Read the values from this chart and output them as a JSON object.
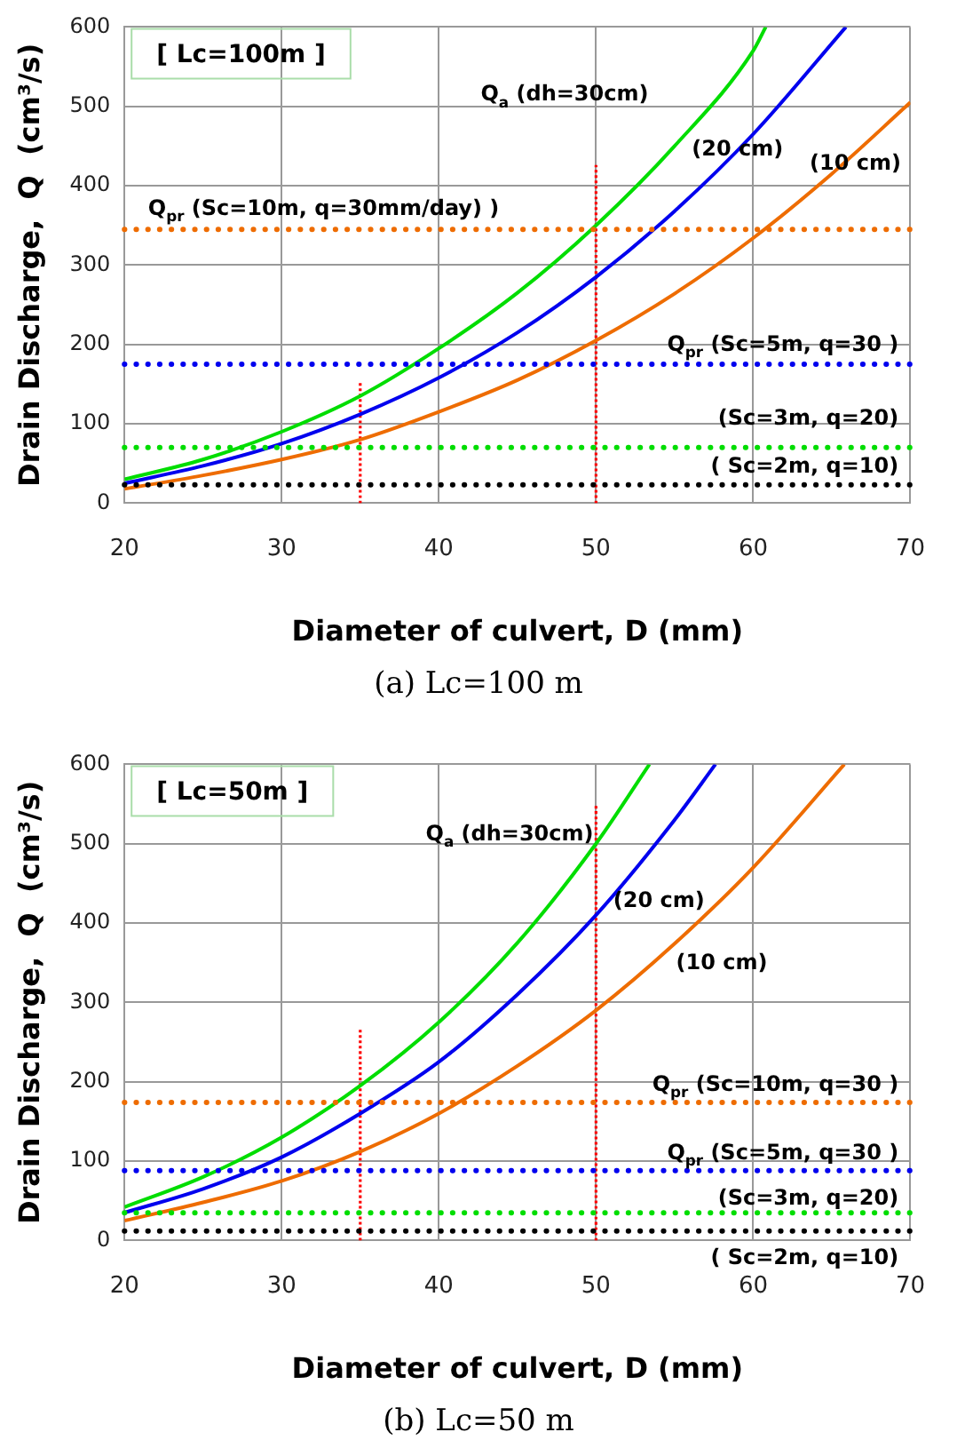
{
  "chart_data": [
    {
      "type": "line",
      "title": "(a) Lc=100 m",
      "xlabel": "Diameter of culvert, D (mm)",
      "ylabel": "Drain Discharge,  Q  (cm³/s)",
      "xlim": [
        20,
        70
      ],
      "xticks": [
        20,
        30,
        40,
        50,
        60,
        70
      ],
      "ylim": [
        0,
        600
      ],
      "yticks": [
        0,
        100,
        200,
        300,
        400,
        500,
        600
      ],
      "grid": true,
      "legend": false,
      "marker": "none",
      "line_style": "solid",
      "series": [
        {
          "color": "#00dd00",
          "x": [
            20,
            25,
            30,
            35,
            40,
            45,
            50,
            55,
            60,
            60.8
          ],
          "values": [
            30,
            55,
            90,
            135,
            195,
            265,
            350,
            450,
            570,
            600
          ]
        },
        {
          "color": "#0000ee",
          "x": [
            20,
            25,
            30,
            35,
            40,
            45,
            50,
            55,
            60,
            65.9
          ],
          "values": [
            25,
            47,
            75,
            112,
            158,
            215,
            285,
            368,
            465,
            600
          ]
        },
        {
          "color": "#ee6c00",
          "x": [
            20,
            25,
            30,
            35,
            40,
            45,
            50,
            55,
            60,
            65,
            70
          ],
          "values": [
            18,
            35,
            55,
            80,
            115,
            155,
            205,
            264,
            334,
            415,
            505
          ]
        },
        {
          "color": "#ff0000",
          "line_style": "dotted",
          "x": [
            35,
            35
          ],
          "values": [
            0,
            153
          ]
        },
        {
          "color": "#ff0000",
          "line_style": "dotted",
          "x": [
            50,
            50
          ],
          "values": [
            0,
            426
          ]
        }
      ],
      "ref_lines": [
        {
          "axis": "y",
          "value": 345,
          "color": "#ee6c00",
          "line_style": "dotted"
        },
        {
          "axis": "y",
          "value": 175,
          "color": "#0000ee",
          "line_style": "dotted"
        },
        {
          "axis": "y",
          "value": 70,
          "color": "#00dd00",
          "line_style": "dotted"
        },
        {
          "axis": "y",
          "value": 23,
          "color": "#000000",
          "line_style": "dotted"
        }
      ],
      "annotations": [
        "[ Lc=100m ]",
        "Q$_{a}$ (dh=30cm)",
        "(20 cm)",
        "(10 cm)",
        "Q$_{pr}$ (Sc=10m, q=30mm/day) )",
        "Q$_{pr}$ (Sc=5m, q=30 )",
        "(Sc=3m, q=20)",
        "( Sc=2m, q=10)"
      ]
    },
    {
      "type": "line",
      "title": "(b) Lc=50 m",
      "xlabel": "Diameter of culvert, D (mm)",
      "ylabel": "Drain Discharge,  Q  (cm³/s)",
      "xlim": [
        20,
        70
      ],
      "xticks": [
        20,
        30,
        40,
        50,
        60,
        70
      ],
      "ylim": [
        0,
        600
      ],
      "yticks": [
        0,
        100,
        200,
        300,
        400,
        500,
        600
      ],
      "grid": true,
      "legend": false,
      "marker": "none",
      "line_style": "solid",
      "series": [
        {
          "color": "#00dd00",
          "x": [
            20,
            25,
            30,
            35,
            40,
            45,
            50,
            53.4
          ],
          "values": [
            42,
            80,
            130,
            195,
            275,
            375,
            500,
            600
          ]
        },
        {
          "color": "#0000ee",
          "x": [
            20,
            25,
            30,
            35,
            40,
            45,
            50,
            55,
            57.6
          ],
          "values": [
            35,
            65,
            105,
            160,
            225,
            310,
            410,
            530,
            600
          ]
        },
        {
          "color": "#ee6c00",
          "x": [
            20,
            25,
            30,
            35,
            40,
            45,
            50,
            55,
            60,
            65.8
          ],
          "values": [
            25,
            48,
            75,
            112,
            160,
            220,
            290,
            374,
            470,
            600
          ]
        },
        {
          "color": "#ff0000",
          "line_style": "dotted",
          "x": [
            35,
            35
          ],
          "values": [
            0,
            268
          ]
        },
        {
          "color": "#ff0000",
          "line_style": "dotted",
          "x": [
            50,
            50
          ],
          "values": [
            0,
            550
          ]
        }
      ],
      "ref_lines": [
        {
          "axis": "y",
          "value": 174,
          "color": "#ee6c00",
          "line_style": "dotted"
        },
        {
          "axis": "y",
          "value": 88,
          "color": "#0000ee",
          "line_style": "dotted"
        },
        {
          "axis": "y",
          "value": 35,
          "color": "#00dd00",
          "line_style": "dotted"
        },
        {
          "axis": "y",
          "value": 12,
          "color": "#000000",
          "line_style": "dotted"
        }
      ],
      "annotations": [
        "[ Lc=50m ]",
        "Q$_{a}$ (dh=30cm)",
        "(20 cm)",
        "(10 cm)",
        "Q$_{pr}$ (Sc=10m, q=30 )",
        "Q$_{pr}$ (Sc=5m, q=30 )",
        "(Sc=3m, q=20)",
        "( Sc=2m, q=10)"
      ]
    }
  ]
}
